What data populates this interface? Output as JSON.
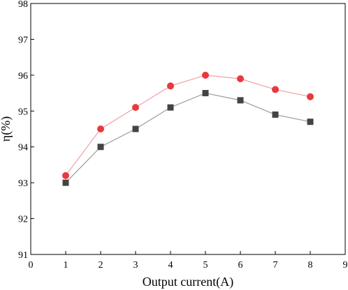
{
  "chart_data": {
    "type": "line",
    "xlabel": "Output current(A)",
    "ylabel": "η(%)",
    "xlim": [
      0,
      9
    ],
    "ylim": [
      91,
      98
    ],
    "xticks": [
      0,
      1,
      2,
      3,
      4,
      5,
      6,
      7,
      8,
      9
    ],
    "yticks": [
      91,
      92,
      93,
      94,
      95,
      96,
      97,
      98
    ],
    "grid": false,
    "x": [
      1,
      2,
      3,
      4,
      5,
      6,
      7,
      8
    ],
    "series": [
      {
        "values": [
          93.2,
          94.5,
          95.1,
          95.7,
          96.0,
          95.9,
          95.6,
          95.4
        ],
        "color": "#e8393f",
        "line_color": "#f0a0a4",
        "marker": "circle"
      },
      {
        "values": [
          93.0,
          94.0,
          94.5,
          95.1,
          95.5,
          95.3,
          94.9,
          94.7
        ],
        "color": "#444444",
        "line_color": "#9a9a9a",
        "marker": "square"
      }
    ]
  }
}
